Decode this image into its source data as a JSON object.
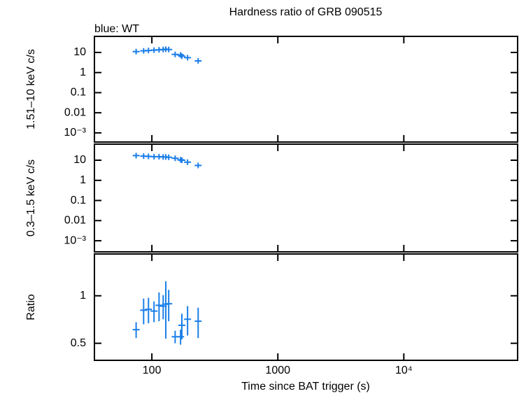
{
  "chart_data": [
    {
      "type": "scatter",
      "title": "Hardness ratio of GRB 090515",
      "subtitle": "blue: WT",
      "ylabel": "1.51–10 keV c/s",
      "color": "#1a7ee8",
      "log_x": true,
      "log_y": true,
      "x": [
        75,
        86,
        94,
        104,
        114,
        123,
        129,
        136,
        153,
        169,
        173,
        192,
        233
      ],
      "values": [
        11,
        12,
        12.5,
        13,
        13.5,
        14,
        14.5,
        14,
        8,
        7.5,
        6.5,
        5.5,
        3.8
      ],
      "xlim": [
        35,
        80000
      ],
      "xticks": [
        100,
        1000,
        {
          "value": 10000,
          "label": "10⁴"
        }
      ],
      "ylim": [
        0.00035,
        63
      ],
      "yticks": [
        10,
        1,
        0.1,
        0.01,
        {
          "value": 0.001,
          "label": "10⁻³"
        }
      ]
    },
    {
      "type": "scatter",
      "ylabel": "0.3–1.5 keV c/s",
      "color": "#1a7ee8",
      "log_x": true,
      "log_y": true,
      "x": [
        75,
        86,
        94,
        104,
        114,
        123,
        129,
        136,
        153,
        169,
        173,
        192,
        233
      ],
      "values": [
        17,
        16,
        15.5,
        15,
        15,
        14.5,
        14.5,
        14,
        12.5,
        10.5,
        10,
        8,
        5.5
      ],
      "xlim": [
        35,
        80000
      ],
      "xticks": [
        100,
        1000,
        {
          "value": 10000,
          "label": "10⁴"
        }
      ],
      "ylim": [
        0.00028,
        63
      ],
      "yticks": [
        10,
        1,
        0.1,
        0.01,
        {
          "value": 0.001,
          "label": "10⁻³"
        }
      ]
    },
    {
      "type": "errorbar",
      "ylabel": "Ratio",
      "xlabel": "Time since BAT trigger (s)",
      "color": "#1a7ee8",
      "log_x": true,
      "log_y": true,
      "x": [
        75,
        86,
        94,
        104,
        114,
        123,
        129,
        136,
        153,
        169,
        173,
        192,
        233
      ],
      "values": [
        0.61,
        0.81,
        0.82,
        0.8,
        0.87,
        0.86,
        0.885,
        0.89,
        0.55,
        0.55,
        0.65,
        0.71,
        0.69
      ],
      "errors": [
        0.07,
        0.15,
        0.15,
        0.12,
        0.18,
        0.15,
        0.35,
        0.2,
        0.05,
        0.06,
        0.12,
        0.15,
        0.15
      ],
      "xlim": [
        35,
        80000
      ],
      "xticks": [
        100,
        1000,
        {
          "value": 10000,
          "label": "10⁴"
        }
      ],
      "ylim": [
        0.39,
        1.84
      ],
      "yticks": [
        1,
        0.5
      ]
    }
  ]
}
